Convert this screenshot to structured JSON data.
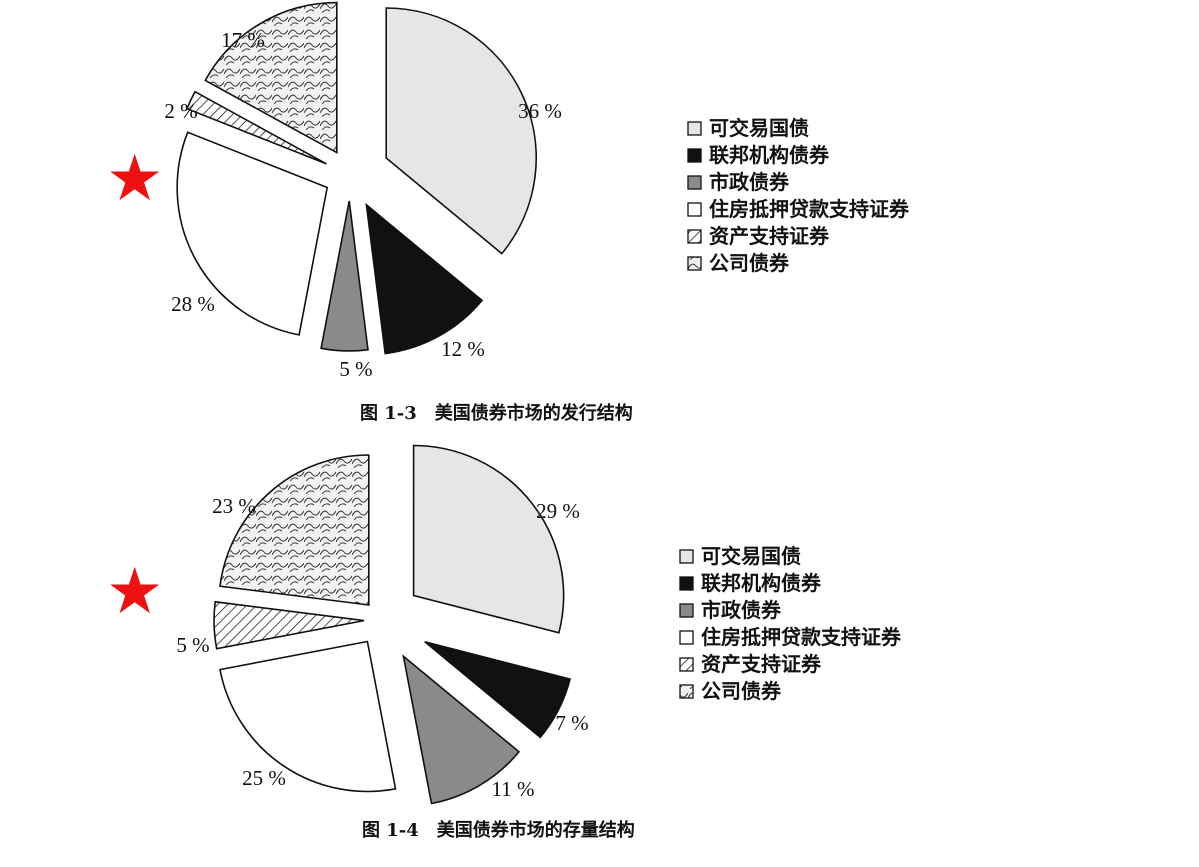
{
  "header_fragment": "",
  "markers": {
    "star_glyph": "★",
    "star_color": "#ee1111"
  },
  "chart_data": [
    {
      "type": "pie",
      "title": "图 1-3　美国债券市场的发行结构",
      "exploded": true,
      "legend_placement": "right",
      "categories": [
        "可交易国债",
        "联邦机构债券",
        "市政债券",
        "住房抵押贷款支持证券",
        "资产支持证券",
        "公司债券"
      ],
      "values": [
        36,
        12,
        5,
        28,
        2,
        17
      ],
      "value_labels": [
        "36 %",
        "12 %",
        "5 %",
        "28 %",
        "2 %",
        "17 %"
      ],
      "fills": [
        "light-gray",
        "black",
        "gray",
        "white",
        "diagonal-hatch",
        "wave-texture"
      ]
    },
    {
      "type": "pie",
      "title": "图 1-4　美国债券市场的存量结构",
      "exploded": true,
      "legend_placement": "right",
      "categories": [
        "可交易国债",
        "联邦机构债券",
        "市政债券",
        "住房抵押贷款支持证券",
        "资产支持证券",
        "公司债券"
      ],
      "values": [
        29,
        7,
        11,
        25,
        5,
        23
      ],
      "value_labels": [
        "29 %",
        "7 %",
        "11 %",
        "25 %",
        "5 %",
        "23 %"
      ],
      "fills": [
        "light-gray",
        "black",
        "gray",
        "white",
        "diagonal-hatch",
        "wave-texture"
      ]
    }
  ]
}
